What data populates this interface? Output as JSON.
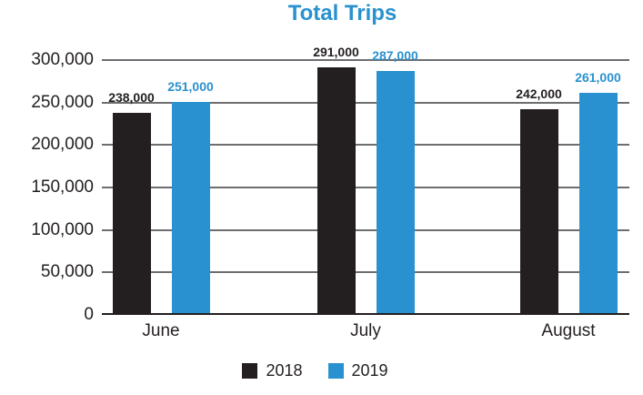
{
  "chart_data": {
    "type": "bar",
    "title": "Total Trips",
    "xlabel": "",
    "ylabel": "",
    "categories": [
      "June",
      "July",
      "August"
    ],
    "series": [
      {
        "name": "2018",
        "color": "#231f20",
        "values": [
          238000,
          291000,
          242000
        ],
        "value_labels": [
          "238,000",
          "291,000",
          "242,000"
        ]
      },
      {
        "name": "2019",
        "color": "#2991cf",
        "values": [
          251000,
          287000,
          261000
        ],
        "value_labels": [
          "251,000",
          "287,000",
          "261,000"
        ]
      }
    ],
    "ylim": [
      0,
      300000
    ],
    "yticks": [
      {
        "value": 0,
        "label": "0"
      },
      {
        "value": 50000,
        "label": "50,000"
      },
      {
        "value": 100000,
        "label": "100,000"
      },
      {
        "value": 150000,
        "label": "150,000"
      },
      {
        "value": 200000,
        "label": "200,000"
      },
      {
        "value": 250000,
        "label": "250,000"
      },
      {
        "value": 300000,
        "label": "300,000"
      }
    ],
    "grid": true,
    "legend_position": "bottom"
  },
  "colors": {
    "title": "#2991cf",
    "text": "#231f20",
    "gridline": "#6d6e71",
    "axis_line": "#231f20",
    "background": "#ffffff"
  }
}
